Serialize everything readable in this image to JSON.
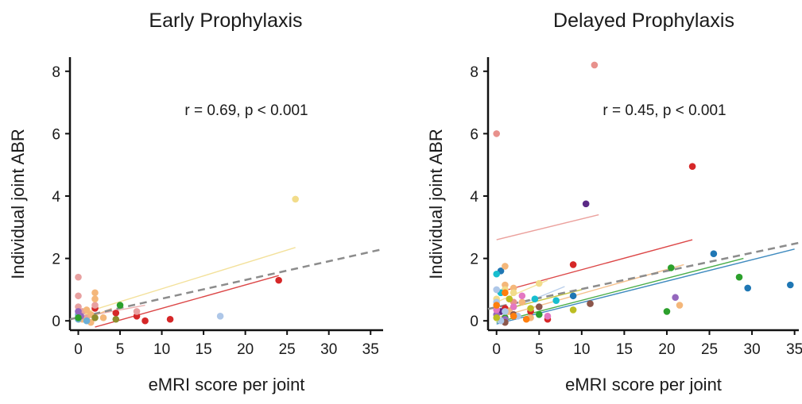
{
  "chart_data": [
    {
      "type": "scatter",
      "title": "Early Prophylaxis",
      "xlabel": "eMRI score per joint",
      "ylabel": "Individual joint ABR",
      "xlim": [
        -1,
        36.5
      ],
      "ylim": [
        -0.3,
        8.3
      ],
      "xticks": [
        0,
        5,
        10,
        15,
        20,
        25,
        30,
        35
      ],
      "yticks": [
        0,
        2,
        4,
        6,
        8
      ],
      "annotation": "r = 0.69, p < 0.001",
      "grid": false,
      "overall_fit": {
        "x": [
          -1,
          36.5
        ],
        "y": [
          0.05,
          2.3
        ],
        "color": "#8c8c8c",
        "style": "dashed"
      },
      "series": [
        {
          "color": "#f2dc8a",
          "points": [
            [
              26,
              3.9
            ],
            [
              1,
              0.3
            ]
          ],
          "fit": {
            "x": [
              0,
              26
            ],
            "y": [
              0.2,
              2.35
            ]
          }
        },
        {
          "color": "#d62728",
          "points": [
            [
              24,
              1.3
            ],
            [
              11,
              0.05
            ],
            [
              8,
              0.0
            ],
            [
              7,
              0.15
            ],
            [
              2,
              0.4
            ],
            [
              4.5,
              0.25
            ]
          ],
          "fit": {
            "x": [
              2,
              24
            ],
            "y": [
              -0.2,
              1.45
            ]
          }
        },
        {
          "color": "#aec7e8",
          "points": [
            [
              17,
              0.15
            ],
            [
              0.5,
              0.1
            ]
          ]
        },
        {
          "color": "#e8a0a0",
          "points": [
            [
              0,
              1.4
            ],
            [
              0,
              0.8
            ],
            [
              0,
              0.45
            ],
            [
              0.5,
              0.3
            ],
            [
              1,
              0.1
            ],
            [
              7,
              0.3
            ],
            [
              2,
              0.5
            ]
          ],
          "fit": {
            "x": [
              0,
              8
            ],
            "y": [
              0.1,
              0.5
            ]
          }
        },
        {
          "color": "#f4b77a",
          "points": [
            [
              2,
              0.9
            ],
            [
              2,
              0.7
            ],
            [
              1,
              0.35
            ],
            [
              1.5,
              0.2
            ],
            [
              3,
              0.1
            ],
            [
              0.5,
              0.05
            ],
            [
              1.5,
              -0.05
            ]
          ],
          "fit": {
            "x": [
              0,
              4
            ],
            "y": [
              -0.05,
              0.4
            ]
          }
        },
        {
          "color": "#6aaed6",
          "points": [
            [
              0,
              0.2
            ],
            [
              0,
              0.05
            ],
            [
              1,
              0.0
            ]
          ]
        },
        {
          "color": "#9467bd",
          "points": [
            [
              0,
              0.3
            ],
            [
              0.3,
              0.15
            ]
          ]
        },
        {
          "color": "#2ca02c",
          "points": [
            [
              5,
              0.5
            ],
            [
              0,
              0.1
            ]
          ]
        },
        {
          "color": "#8c8c2c",
          "points": [
            [
              4.5,
              0.05
            ],
            [
              2,
              0.1
            ]
          ]
        }
      ]
    },
    {
      "type": "scatter",
      "title": "Delayed Prophylaxis",
      "xlabel": "eMRI score per joint",
      "ylabel": "Individual joint ABR",
      "xlim": [
        -1,
        35.5
      ],
      "ylim": [
        -0.3,
        8.3
      ],
      "xticks": [
        0,
        5,
        10,
        15,
        20,
        25,
        30,
        35
      ],
      "yticks": [
        0,
        2,
        4,
        6,
        8
      ],
      "annotation": "r = 0.45, p < 0.001",
      "grid": false,
      "overall_fit": {
        "x": [
          -1,
          35.5
        ],
        "y": [
          0.38,
          2.5
        ],
        "color": "#8c8c8c",
        "style": "dashed"
      },
      "series": [
        {
          "color": "#e8918c",
          "points": [
            [
              11.5,
              8.2
            ],
            [
              0,
              6.0
            ],
            [
              1,
              1.0
            ],
            [
              2,
              0.6
            ]
          ],
          "fit": {
            "x": [
              0,
              12
            ],
            "y": [
              2.6,
              3.4
            ]
          }
        },
        {
          "color": "#d62728",
          "points": [
            [
              23,
              4.95
            ],
            [
              9,
              1.8
            ],
            [
              6,
              0.05
            ],
            [
              4,
              0.3
            ],
            [
              1,
              0.4
            ]
          ],
          "fit": {
            "x": [
              0,
              23
            ],
            "y": [
              0.9,
              2.6
            ]
          }
        },
        {
          "color": "#5b2a86",
          "points": [
            [
              10.5,
              3.75
            ],
            [
              0.5,
              0.3
            ]
          ]
        },
        {
          "color": "#1f77b4",
          "points": [
            [
              25.5,
              2.15
            ],
            [
              29.5,
              1.05
            ],
            [
              34.5,
              1.15
            ],
            [
              9,
              0.8
            ],
            [
              0.5,
              1.6
            ]
          ],
          "fit": {
            "x": [
              0,
              35
            ],
            "y": [
              -0.1,
              2.3
            ]
          }
        },
        {
          "color": "#2ca02c",
          "points": [
            [
              20.5,
              1.7
            ],
            [
              28.5,
              1.4
            ],
            [
              20,
              0.3
            ],
            [
              5,
              0.2
            ],
            [
              1,
              0.1
            ]
          ],
          "fit": {
            "x": [
              0,
              29
            ],
            "y": [
              -0.05,
              2.0
            ]
          }
        },
        {
          "color": "#f4b77a",
          "points": [
            [
              1,
              1.75
            ],
            [
              1,
              1.15
            ],
            [
              2,
              1.05
            ],
            [
              3,
              0.6
            ],
            [
              1.5,
              0.3
            ],
            [
              4,
              0.1
            ],
            [
              21.5,
              0.5
            ]
          ],
          "fit": {
            "x": [
              0,
              22
            ],
            "y": [
              0.1,
              1.8
            ]
          }
        },
        {
          "color": "#9467bd",
          "points": [
            [
              21,
              0.75
            ],
            [
              0,
              0.2
            ],
            [
              1,
              0.05
            ]
          ]
        },
        {
          "color": "#8c564b",
          "points": [
            [
              11,
              0.55
            ],
            [
              5,
              0.45
            ],
            [
              2,
              0.2
            ],
            [
              1,
              -0.05
            ]
          ]
        },
        {
          "color": "#f2dc8a",
          "points": [
            [
              5,
              1.2
            ],
            [
              1,
              1.0
            ],
            [
              0,
              0.7
            ],
            [
              2,
              0.9
            ]
          ],
          "fit": {
            "x": [
              0,
              6
            ],
            "y": [
              0.6,
              1.3
            ]
          }
        },
        {
          "color": "#17becf",
          "points": [
            [
              0,
              1.5
            ],
            [
              0.5,
              0.9
            ],
            [
              4.5,
              0.7
            ],
            [
              7,
              0.65
            ]
          ]
        },
        {
          "color": "#aec7e8",
          "points": [
            [
              0,
              1.0
            ],
            [
              0,
              0.6
            ],
            [
              1,
              0.3
            ],
            [
              2.5,
              0.15
            ],
            [
              0.5,
              0.0
            ]
          ],
          "fit": {
            "x": [
              0,
              8
            ],
            "y": [
              0.2,
              1.1
            ]
          }
        },
        {
          "color": "#e377c2",
          "points": [
            [
              3,
              0.8
            ],
            [
              2,
              0.45
            ],
            [
              6,
              0.15
            ],
            [
              0,
              0.35
            ]
          ]
        },
        {
          "color": "#bcbd22",
          "points": [
            [
              1.5,
              0.7
            ],
            [
              4,
              0.4
            ],
            [
              0,
              0.1
            ],
            [
              9,
              0.35
            ]
          ],
          "fit": {
            "x": [
              0,
              10
            ],
            "y": [
              0.3,
              1.0
            ]
          }
        },
        {
          "color": "#ff7f0e",
          "points": [
            [
              1,
              0.9
            ],
            [
              2,
              0.15
            ],
            [
              3.5,
              0.05
            ],
            [
              0,
              0.5
            ]
          ]
        }
      ]
    }
  ]
}
